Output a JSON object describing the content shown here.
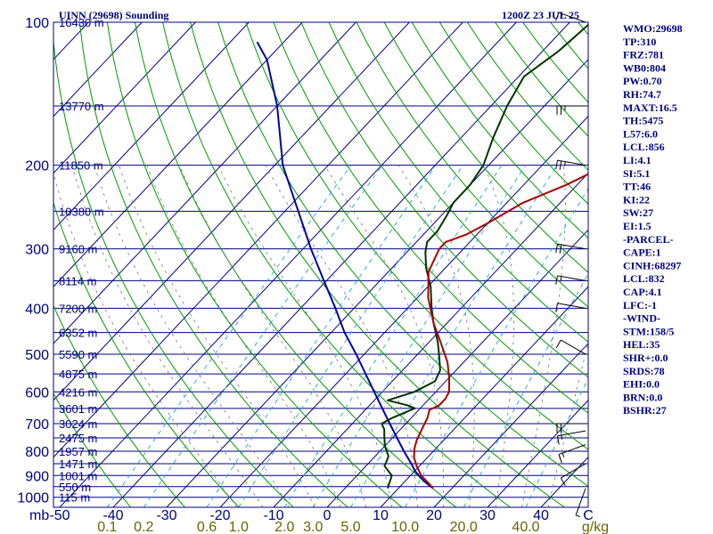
{
  "header": {
    "station": "UINN (29698) Sounding",
    "time": "1200Z 23 JUL 25"
  },
  "indices": [
    "WMO:29698",
    "TP:310",
    "FRZ:781",
    "WB0:804",
    "PW:0.70",
    "RH:74.7",
    "MAXT:16.5",
    "TH:5475",
    "L57:6.0",
    "LCL:856",
    "LI:4.1",
    "SI:5.1",
    "TT:46",
    "KI:22",
    "SW:27",
    "EI:1.5",
    "-PARCEL-",
    "CAPE:1",
    "CINH:68297",
    "LCL:832",
    "CAP:4.1",
    "LFC:-1",
    "-WIND-",
    "STM:158/5",
    "HEL:35",
    "SHR+:0.0",
    "SRDS:78",
    "EHI:0.0",
    "BRN:0.0",
    "BSHR:27"
  ],
  "colors": {
    "frame": "#000080",
    "isobar": "#000080",
    "isotherm": "#000080",
    "dry_adiabat": "#009900",
    "moist_adiabat": "#66aa66",
    "mixing_ratio": "#33aadd",
    "temperature": "#aa0000",
    "dewpoint": "#003300",
    "parcel": "#0000aa",
    "wind": "#000000"
  },
  "chart_data": {
    "type": "skew-t log-p",
    "title": "UINN (29698) Sounding",
    "xlabel": "",
    "ylabel": "mb",
    "pressure_labels": [
      100,
      200,
      300,
      400,
      500,
      600,
      700,
      800,
      900,
      1000
    ],
    "pressure_range": [
      100,
      1050
    ],
    "temperature_labels": [
      -50,
      -40,
      -30,
      -20,
      -10,
      0,
      10,
      20,
      30,
      40
    ],
    "temperature_range": [
      -60,
      50
    ],
    "mixing_ratio_labels": [
      {
        "value": 0.1,
        "text": "0.1"
      },
      {
        "value": 0.2,
        "text": "0.2"
      },
      {
        "value": 0.6,
        "text": "0.6"
      },
      {
        "value": 1.0,
        "text": "1.0"
      },
      {
        "value": 2.0,
        "text": "2.0"
      },
      {
        "value": 3.0,
        "text": "3.0"
      },
      {
        "value": 5.0,
        "text": "5.0"
      },
      {
        "value": 10.0,
        "text": "10.0"
      },
      {
        "value": 20.0,
        "text": "20.0"
      },
      {
        "value": 40.0,
        "text": "40.0"
      }
    ],
    "mixing_ratio_unit": "g/kg",
    "height_labels": [
      {
        "p": 100,
        "text": "16430 m"
      },
      {
        "p": 150,
        "text": "13770 m"
      },
      {
        "p": 200,
        "text": "11850 m"
      },
      {
        "p": 250,
        "text": "10380 m"
      },
      {
        "p": 300,
        "text": "9160 m"
      },
      {
        "p": 350,
        "text": "8114 m"
      },
      {
        "p": 400,
        "text": "7200 m"
      },
      {
        "p": 450,
        "text": "6352 m"
      },
      {
        "p": 500,
        "text": "5590 m"
      },
      {
        "p": 550,
        "text": "4875 m"
      },
      {
        "p": 600,
        "text": "4216 m"
      },
      {
        "p": 650,
        "text": "3601 m"
      },
      {
        "p": 700,
        "text": "3024 m"
      },
      {
        "p": 750,
        "text": "2475 m"
      },
      {
        "p": 800,
        "text": "1957 m"
      },
      {
        "p": 850,
        "text": "1471 m"
      },
      {
        "p": 900,
        "text": "1001 m"
      },
      {
        "p": 950,
        "text": "550 m"
      },
      {
        "p": 1000,
        "text": "115 m"
      }
    ],
    "temperature_profile": [
      [
        958,
        16.5
      ],
      [
        925,
        14.0
      ],
      [
        900,
        12.0
      ],
      [
        860,
        9.5
      ],
      [
        825,
        7.5
      ],
      [
        790,
        6.0
      ],
      [
        760,
        5.0
      ],
      [
        720,
        4.0
      ],
      [
        680,
        3.0
      ],
      [
        655,
        2.0
      ],
      [
        640,
        3.0
      ],
      [
        620,
        3.0
      ],
      [
        600,
        2.5
      ],
      [
        560,
        0.0
      ],
      [
        520,
        -3.0
      ],
      [
        470,
        -8.0
      ],
      [
        430,
        -12.5
      ],
      [
        380,
        -18.0
      ],
      [
        335,
        -22.5
      ],
      [
        300,
        -24.5
      ],
      [
        290,
        -24.5
      ],
      [
        280,
        -22.0
      ],
      [
        265,
        -20.0
      ],
      [
        240,
        -17.0
      ],
      [
        220,
        -12.0
      ],
      [
        200,
        -8.0
      ],
      [
        165,
        -2.0
      ],
      [
        145,
        1.0
      ],
      [
        120,
        5.0
      ],
      [
        100,
        7.5
      ]
    ],
    "dewpoint_profile": [
      [
        958,
        8.0
      ],
      [
        900,
        6.5
      ],
      [
        860,
        3.5
      ],
      [
        820,
        2.5
      ],
      [
        780,
        0.0
      ],
      [
        740,
        -2.0
      ],
      [
        720,
        -3.0
      ],
      [
        700,
        -4.5
      ],
      [
        680,
        -3.5
      ],
      [
        650,
        -1.0
      ],
      [
        640,
        -3.0
      ],
      [
        625,
        -7.5
      ],
      [
        600,
        -4.0
      ],
      [
        570,
        -2.0
      ],
      [
        540,
        -3.0
      ],
      [
        500,
        -6.0
      ],
      [
        470,
        -8.5
      ],
      [
        430,
        -12.5
      ],
      [
        400,
        -15.5
      ],
      [
        360,
        -19.5
      ],
      [
        330,
        -23.5
      ],
      [
        305,
        -26.5
      ],
      [
        290,
        -28.0
      ],
      [
        275,
        -28.0
      ],
      [
        255,
        -29.0
      ],
      [
        240,
        -30.0
      ],
      [
        220,
        -30.0
      ],
      [
        200,
        -31.0
      ],
      [
        175,
        -34.0
      ],
      [
        150,
        -37.0
      ],
      [
        130,
        -39.0
      ],
      [
        115,
        -37.0
      ],
      [
        100,
        -36.0
      ]
    ],
    "parcel_profile": [
      [
        958,
        16.5
      ],
      [
        925,
        13.5
      ],
      [
        880,
        10.0
      ],
      [
        856,
        8.5
      ],
      [
        800,
        4.5
      ],
      [
        700,
        -3.0
      ],
      [
        600,
        -11.5
      ],
      [
        500,
        -21.5
      ],
      [
        450,
        -27.5
      ],
      [
        400,
        -33.5
      ],
      [
        350,
        -40.5
      ],
      [
        300,
        -48.5
      ],
      [
        250,
        -57.5
      ],
      [
        200,
        -68.5
      ],
      [
        150,
        -80.0
      ],
      [
        120,
        -90.0
      ],
      [
        110,
        -95.0
      ]
    ],
    "wind_barbs": [
      {
        "p": 958,
        "dir": 200,
        "spd": 5
      },
      {
        "p": 850,
        "dir": 240,
        "spd": 10
      },
      {
        "p": 775,
        "dir": 250,
        "spd": 15
      },
      {
        "p": 725,
        "dir": 260,
        "spd": 15
      },
      {
        "p": 700,
        "dir": 270,
        "spd": 20
      },
      {
        "p": 500,
        "dir": 300,
        "spd": 10
      },
      {
        "p": 400,
        "dir": 280,
        "spd": 10
      },
      {
        "p": 350,
        "dir": 280,
        "spd": 15
      },
      {
        "p": 300,
        "dir": 280,
        "spd": 20
      },
      {
        "p": 200,
        "dir": 280,
        "spd": 25
      },
      {
        "p": 150,
        "dir": 270,
        "spd": 25
      },
      {
        "p": 100,
        "dir": 290,
        "spd": 15
      }
    ]
  }
}
